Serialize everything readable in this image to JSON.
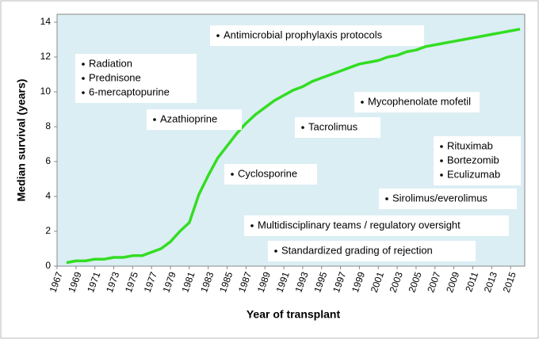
{
  "chart_data": {
    "type": "line",
    "xlabel": "Year of transplant",
    "ylabel": "Median survival (years)",
    "x": [
      1968,
      1969,
      1970,
      1971,
      1972,
      1973,
      1974,
      1975,
      1976,
      1977,
      1978,
      1979,
      1980,
      1981,
      1982,
      1983,
      1984,
      1985,
      1986,
      1987,
      1988,
      1989,
      1990,
      1991,
      1992,
      1993,
      1994,
      1995,
      1996,
      1997,
      1998,
      1999,
      2000,
      2001,
      2002,
      2003,
      2004,
      2005,
      2006,
      2007,
      2008,
      2009,
      2010,
      2011,
      2012,
      2013,
      2014,
      2015,
      2016
    ],
    "series": [
      {
        "color": "#33dd22",
        "values": [
          0.2,
          0.3,
          0.3,
          0.4,
          0.4,
          0.5,
          0.5,
          0.6,
          0.6,
          0.8,
          1.0,
          1.4,
          2.0,
          2.5,
          4.1,
          5.2,
          6.2,
          6.9,
          7.6,
          8.2,
          8.7,
          9.1,
          9.5,
          9.8,
          10.1,
          10.3,
          10.6,
          10.8,
          11.0,
          11.2,
          11.4,
          11.6,
          11.7,
          11.8,
          12.0,
          12.1,
          12.3,
          12.4,
          12.6,
          12.7,
          12.8,
          12.9,
          13.0,
          13.1,
          13.2,
          13.3,
          13.4,
          13.5,
          13.6
        ]
      }
    ],
    "xlim": [
      1967,
      2016.5
    ],
    "ylim": [
      0,
      14
    ],
    "xticks": [
      1967,
      1969,
      1971,
      1973,
      1975,
      1977,
      1979,
      1981,
      1983,
      1985,
      1987,
      1989,
      1991,
      1993,
      1995,
      1997,
      1999,
      2001,
      2003,
      2005,
      2007,
      2009,
      2011,
      2013,
      2015
    ],
    "yticks": [
      0,
      2,
      4,
      6,
      8,
      10,
      12,
      14
    ],
    "annotations": [
      [
        "Antimicrobial prophylaxis protocols"
      ],
      [
        "Radiation",
        "Prednisone",
        "6-mercaptopurine"
      ],
      [
        "Azathioprine"
      ],
      [
        "Mycophenolate mofetil"
      ],
      [
        "Tacrolimus"
      ],
      [
        "Rituximab",
        "Bortezomib",
        "Eculizumab"
      ],
      [
        "Cyclosporine"
      ],
      [
        "Sirolimus/everolimus"
      ],
      [
        "Multidisciplinary teams / regulatory oversight"
      ],
      [
        "Standardized grading of rejection"
      ]
    ]
  }
}
